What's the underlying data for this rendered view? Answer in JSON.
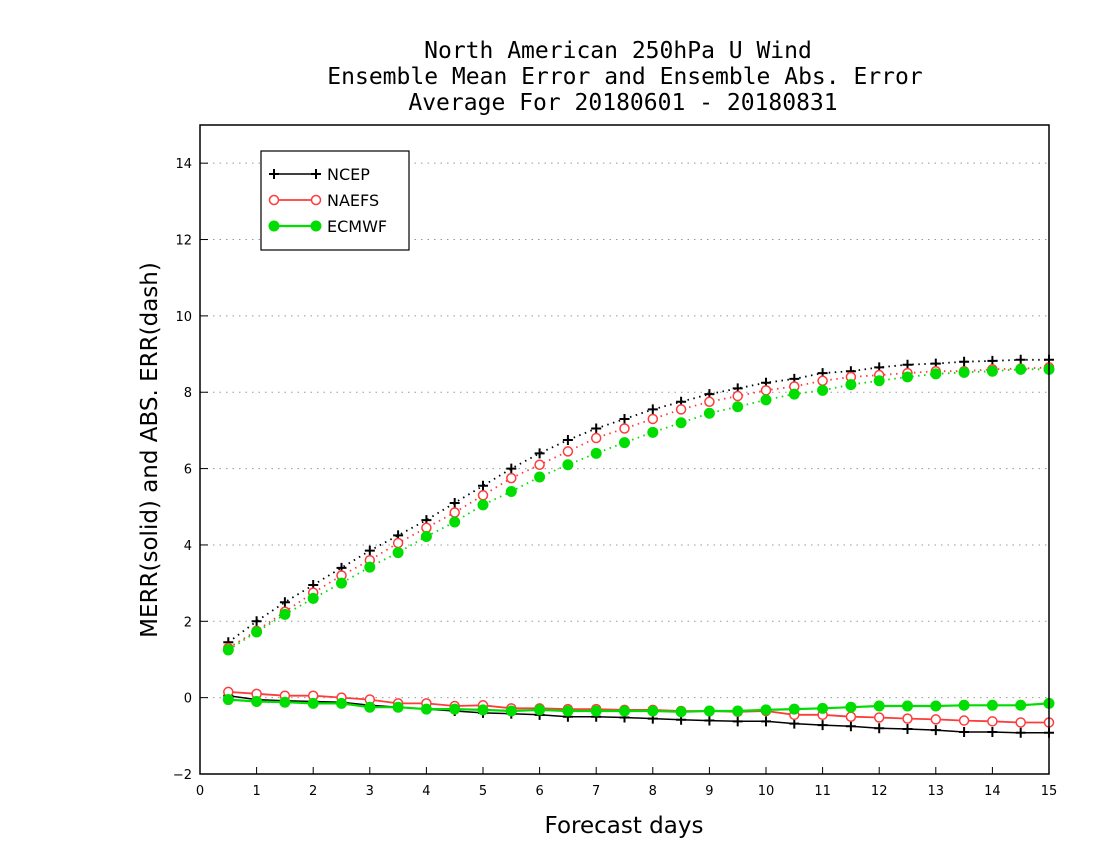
{
  "chart_data": {
    "type": "line",
    "title_lines": [
      "North American 250hPa U Wind",
      "Ensemble Mean Error and Ensemble Abs. Error",
      "Average For 20180601 - 20180831"
    ],
    "xlabel": "Forecast days",
    "ylabel": "MERR(solid) and ABS. ERR(dash)",
    "xlim": [
      0,
      15
    ],
    "ylim": [
      -2,
      15
    ],
    "x_ticks": [
      0,
      1,
      2,
      3,
      4,
      5,
      6,
      7,
      8,
      9,
      10,
      11,
      12,
      13,
      14,
      15
    ],
    "y_ticks": [
      -2,
      0,
      2,
      4,
      6,
      8,
      10,
      12,
      14
    ],
    "grid": "horizontal dotted",
    "legend_position": "top-left",
    "x": [
      0.5,
      1,
      1.5,
      2,
      2.5,
      3,
      3.5,
      4,
      4.5,
      5,
      5.5,
      6,
      6.5,
      7,
      7.5,
      8,
      8.5,
      9,
      9.5,
      10,
      10.5,
      11,
      11.5,
      12,
      12.5,
      13,
      13.5,
      14,
      14.5,
      15
    ],
    "series": [
      {
        "name": "NCEP",
        "color": "#000000",
        "marker": "plus",
        "merr": [
          0.05,
          -0.05,
          -0.08,
          -0.1,
          -0.12,
          -0.2,
          -0.25,
          -0.3,
          -0.35,
          -0.4,
          -0.42,
          -0.45,
          -0.5,
          -0.5,
          -0.52,
          -0.55,
          -0.58,
          -0.6,
          -0.62,
          -0.62,
          -0.68,
          -0.72,
          -0.75,
          -0.8,
          -0.82,
          -0.85,
          -0.9,
          -0.9,
          -0.92,
          -0.92
        ],
        "abs_err": [
          1.45,
          2.0,
          2.5,
          2.95,
          3.4,
          3.85,
          4.25,
          4.65,
          5.1,
          5.55,
          6.0,
          6.4,
          6.75,
          7.05,
          7.3,
          7.55,
          7.75,
          7.95,
          8.1,
          8.25,
          8.35,
          8.5,
          8.55,
          8.65,
          8.72,
          8.75,
          8.8,
          8.82,
          8.85,
          8.85
        ]
      },
      {
        "name": "NAEFS",
        "color": "#ff3b3b",
        "marker": "open-circle",
        "merr": [
          0.15,
          0.1,
          0.05,
          0.05,
          0.0,
          -0.05,
          -0.15,
          -0.15,
          -0.22,
          -0.2,
          -0.28,
          -0.28,
          -0.3,
          -0.3,
          -0.32,
          -0.32,
          -0.35,
          -0.35,
          -0.37,
          -0.35,
          -0.45,
          -0.45,
          -0.5,
          -0.52,
          -0.55,
          -0.57,
          -0.6,
          -0.62,
          -0.65,
          -0.65
        ],
        "abs_err": [
          1.3,
          1.75,
          2.25,
          2.75,
          3.2,
          3.6,
          4.05,
          4.45,
          4.85,
          5.3,
          5.75,
          6.1,
          6.45,
          6.8,
          7.05,
          7.3,
          7.55,
          7.75,
          7.9,
          8.05,
          8.15,
          8.3,
          8.4,
          8.45,
          8.5,
          8.55,
          8.55,
          8.6,
          8.62,
          8.65
        ]
      },
      {
        "name": "ECMWF",
        "color": "#00dd00",
        "marker": "filled-circle",
        "merr": [
          -0.05,
          -0.1,
          -0.12,
          -0.15,
          -0.15,
          -0.25,
          -0.25,
          -0.3,
          -0.3,
          -0.32,
          -0.35,
          -0.32,
          -0.35,
          -0.35,
          -0.35,
          -0.35,
          -0.37,
          -0.35,
          -0.35,
          -0.32,
          -0.3,
          -0.28,
          -0.25,
          -0.22,
          -0.22,
          -0.22,
          -0.2,
          -0.2,
          -0.2,
          -0.15
        ],
        "abs_err": [
          1.25,
          1.72,
          2.18,
          2.6,
          3.0,
          3.42,
          3.8,
          4.22,
          4.6,
          5.05,
          5.4,
          5.78,
          6.1,
          6.4,
          6.68,
          6.95,
          7.2,
          7.45,
          7.62,
          7.8,
          7.95,
          8.05,
          8.2,
          8.3,
          8.4,
          8.48,
          8.52,
          8.55,
          8.6,
          8.6
        ]
      }
    ]
  }
}
